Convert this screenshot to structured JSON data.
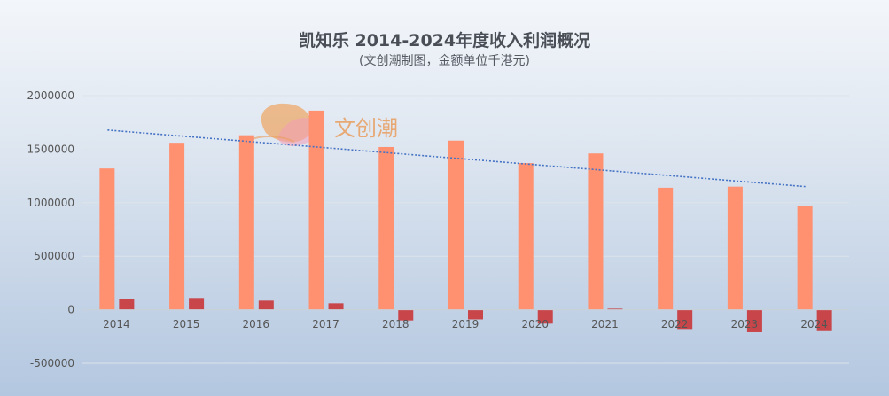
{
  "title": "凯知乐 2014-2024年度收入利润概况",
  "subtitle": "(文创潮制图，金额单位千港元)",
  "watermark": "文创潮",
  "colors": {
    "revenue": "#ff9070",
    "profit": "#c8454a",
    "trend": "#4472c4",
    "grid": "#dde3ea"
  },
  "chart_data": {
    "type": "bar",
    "categories": [
      "2014",
      "2015",
      "2016",
      "2017",
      "2018",
      "2019",
      "2020",
      "2021",
      "2022",
      "2023",
      "2024"
    ],
    "series": [
      {
        "values": [
          1320000,
          1560000,
          1630000,
          1860000,
          1520000,
          1580000,
          1370000,
          1460000,
          1140000,
          1150000,
          970000
        ]
      },
      {
        "values": [
          100000,
          110000,
          85000,
          60000,
          -100000,
          -90000,
          -130000,
          10000,
          -180000,
          -210000,
          -200000
        ]
      }
    ],
    "trendline": {
      "type": "linear",
      "series_index": 0,
      "style": "dotted"
    },
    "yticks": [
      -500000,
      0,
      500000,
      1000000,
      1500000,
      2000000
    ],
    "ylim": [
      -500000,
      2000000
    ],
    "grid": true,
    "legend": "none"
  }
}
